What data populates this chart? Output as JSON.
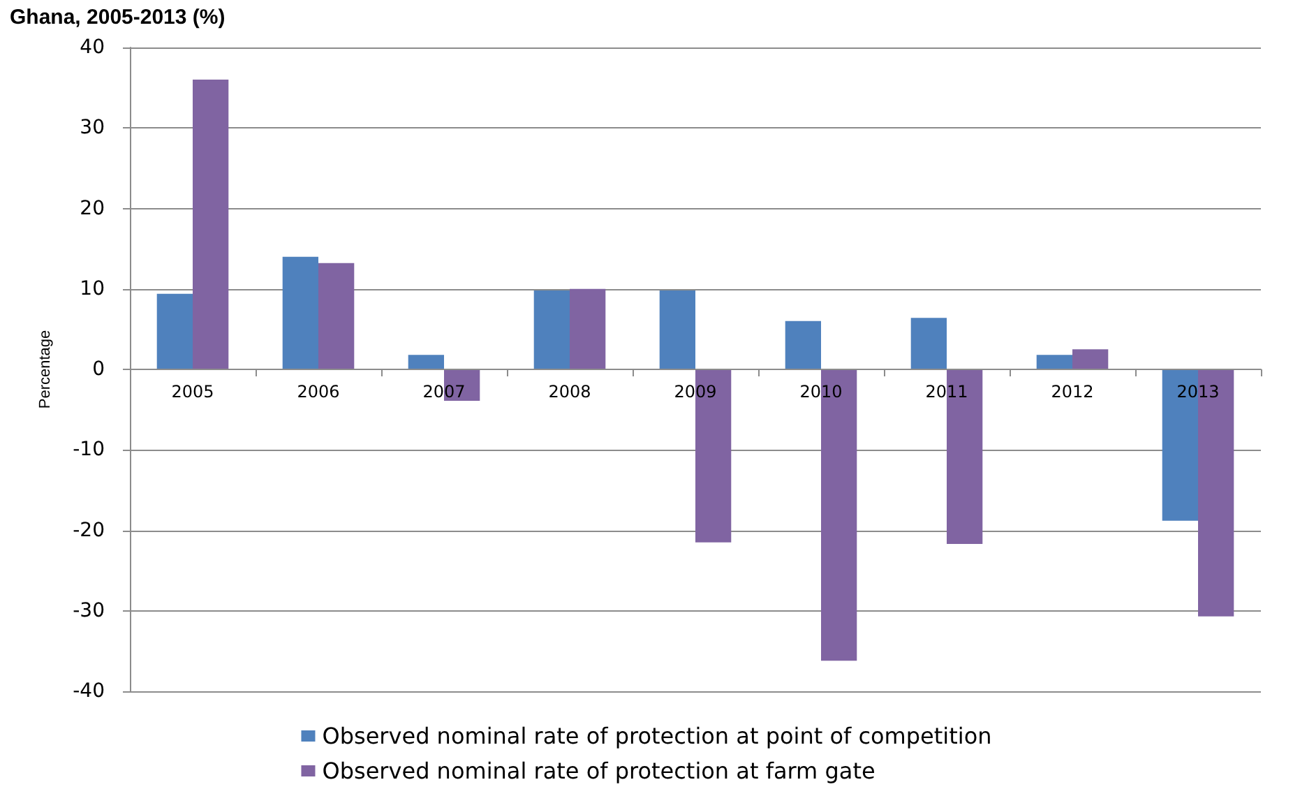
{
  "chart_data": {
    "type": "bar",
    "title": "Ghana, 2005-2013 (%)",
    "ylabel": "Percentage",
    "categories": [
      "2005",
      "2006",
      "2007",
      "2008",
      "2009",
      "2010",
      "2011",
      "2012",
      "2013"
    ],
    "series": [
      {
        "name": "Observed nominal rate of protection at point of competition",
        "color": "#4f81bd",
        "values": [
          9.4,
          14.0,
          1.8,
          9.8,
          9.8,
          6.0,
          6.4,
          1.8,
          -18.8
        ]
      },
      {
        "name": "Observed nominal rate of protection at farm gate",
        "color": "#8064a2",
        "values": [
          36.0,
          13.2,
          -3.9,
          10.0,
          -21.5,
          -36.2,
          -21.7,
          2.5,
          -30.7
        ]
      }
    ],
    "ylim": [
      -40,
      40
    ],
    "yticks": [
      -40,
      -30,
      -20,
      -10,
      0,
      10,
      20,
      30,
      40
    ],
    "grid": "y",
    "legend": "bottom"
  }
}
